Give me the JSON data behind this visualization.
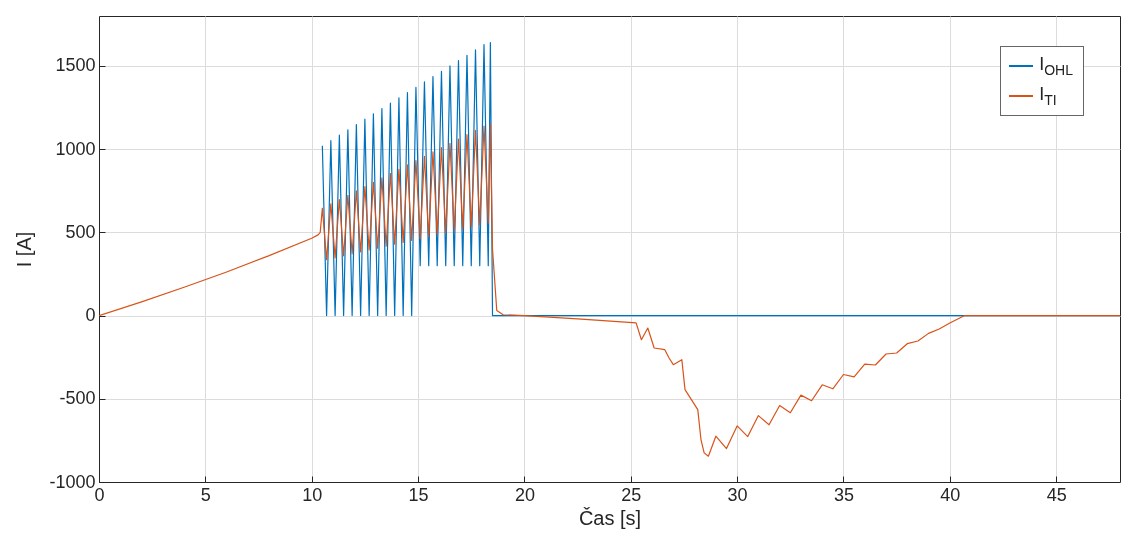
{
  "chart_data": {
    "type": "line",
    "xlabel": "Čas [s]",
    "ylabel": "I [A]",
    "xlim": [
      0,
      48
    ],
    "ylim": [
      -1000,
      1800
    ],
    "xticks": [
      0,
      5,
      10,
      15,
      20,
      25,
      30,
      35,
      40,
      45
    ],
    "yticks": [
      -1000,
      -500,
      0,
      500,
      1000,
      1500
    ],
    "grid": true,
    "legend": "top right",
    "series": [
      {
        "name": "I$_{OHL}$",
        "color": "#0072bd",
        "x": [
          10.5,
          10.7,
          10.9,
          11.1,
          11.3,
          11.5,
          11.7,
          11.9,
          12.1,
          12.3,
          12.5,
          12.7,
          12.9,
          13.1,
          13.3,
          13.5,
          13.7,
          13.9,
          14.1,
          14.3,
          14.5,
          14.7,
          14.9,
          15.1,
          15.3,
          15.5,
          15.7,
          15.9,
          16.1,
          16.3,
          16.5,
          16.7,
          16.9,
          17.1,
          17.3,
          17.5,
          17.7,
          17.9,
          18.1,
          18.3,
          18.4,
          18.5,
          48
        ],
        "values": [
          1020,
          0,
          1052,
          0,
          1084,
          0,
          1116,
          0,
          1148,
          0,
          1180,
          0,
          1212,
          0,
          1244,
          0,
          1276,
          0,
          1308,
          0,
          1340,
          0,
          1372,
          300,
          1404,
          300,
          1436,
          300,
          1468,
          300,
          1500,
          300,
          1532,
          300,
          1564,
          300,
          1596,
          300,
          1628,
          300,
          1640,
          0,
          0
        ]
      },
      {
        "name": "I$_{TI}$",
        "color": "#d95319",
        "x": [
          0,
          2,
          4,
          6,
          8,
          10,
          10.3,
          10.4,
          10.5,
          10.7,
          10.9,
          11.1,
          11.3,
          11.5,
          11.7,
          11.9,
          12.1,
          12.3,
          12.5,
          12.7,
          12.9,
          13.1,
          13.3,
          13.5,
          13.7,
          13.9,
          14.1,
          14.3,
          14.5,
          14.7,
          14.9,
          15.1,
          15.3,
          15.5,
          15.7,
          15.9,
          16.1,
          16.3,
          16.5,
          16.7,
          16.9,
          17.1,
          17.3,
          17.5,
          17.7,
          17.9,
          18.1,
          18.3,
          18.4,
          18.5,
          18.7,
          19,
          20,
          22.5,
          25.25,
          25.5,
          25.8,
          26.1,
          26.6,
          26.8,
          27,
          27.4,
          27.55,
          27.85,
          28.15,
          28.3,
          28.45,
          28.65,
          29,
          29.5,
          30,
          30.5,
          31,
          31.5,
          32,
          32.5,
          33,
          33.5,
          34,
          34.5,
          35,
          35.5,
          36,
          36.5,
          37,
          37.5,
          38,
          38.5,
          39,
          39.5,
          40,
          40.7,
          48
        ],
        "values": [
          0,
          82,
          170,
          262,
          360,
          465,
          485,
          500,
          645,
          336,
          671,
          347,
          697,
          359,
          723,
          371,
          749,
          382,
          775,
          394,
          801,
          405,
          827,
          417,
          853,
          429,
          879,
          440,
          905,
          452,
          931,
          463,
          957,
          475,
          983,
          487,
          1009,
          498,
          1035,
          510,
          1061,
          521,
          1087,
          533,
          1113,
          545,
          1139,
          556,
          1152,
          400,
          30,
          5,
          0,
          -20,
          -44,
          -145,
          -75,
          -195,
          -205,
          -255,
          -295,
          -265,
          -445,
          -505,
          -565,
          -745,
          -825,
          -845,
          -725,
          -799,
          -663,
          -727,
          -601,
          -656,
          -540,
          -584,
          -478,
          -512,
          -416,
          -440,
          -354,
          -368,
          -292,
          -297,
          -231,
          -225,
          -169,
          -153,
          -107,
          -81,
          -45,
          0,
          0
        ]
      }
    ]
  }
}
